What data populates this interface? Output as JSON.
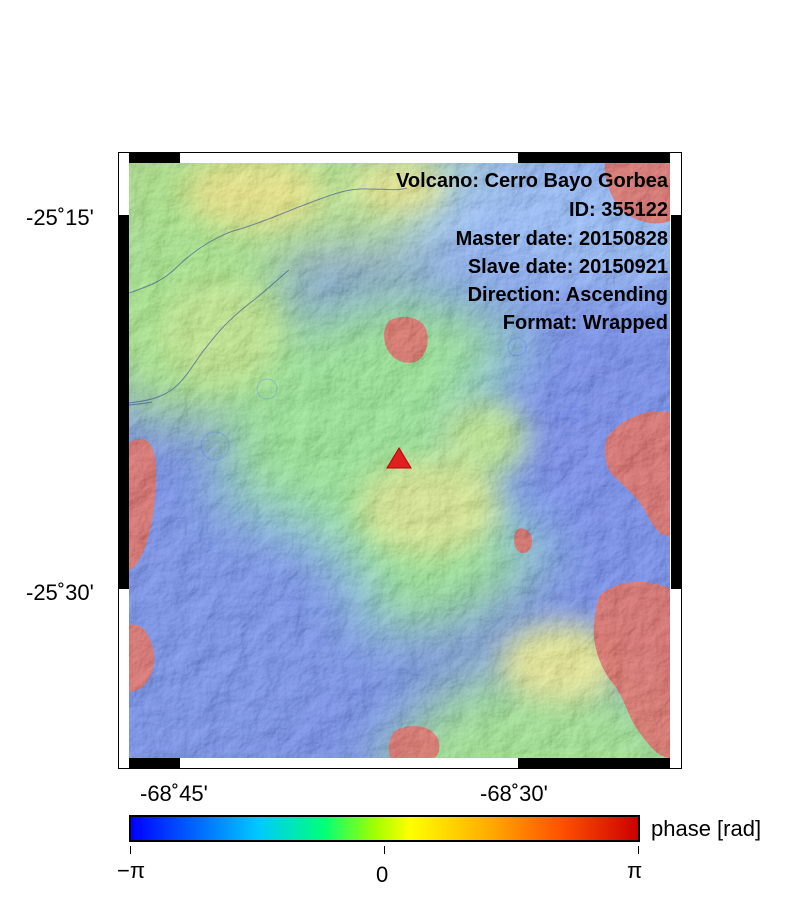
{
  "volcano_label": "Volcano: Cerro Bayo Gorbea",
  "id_label": "ID: 355122",
  "master_date_label": "Master date: 20150828",
  "slave_date_label": "Slave date: 20150921",
  "direction_label": "Direction: Ascending",
  "format_label": "Format: Wrapped",
  "lat_ticks": [
    "-25˚15'",
    "-25˚30'"
  ],
  "lon_ticks": [
    "-68˚45'",
    "-68˚30'"
  ],
  "colorbar": {
    "title": "phase [rad]",
    "min_label": "−π",
    "mid_label": "0",
    "max_label": "π"
  },
  "marker": {
    "type": "triangle",
    "color": "#e02020",
    "meaning": "volcano location"
  },
  "colors": {
    "blue": "#2f56e7",
    "green": "#67d95c",
    "yellow": "#e0e044",
    "red": "#d32a1f"
  }
}
